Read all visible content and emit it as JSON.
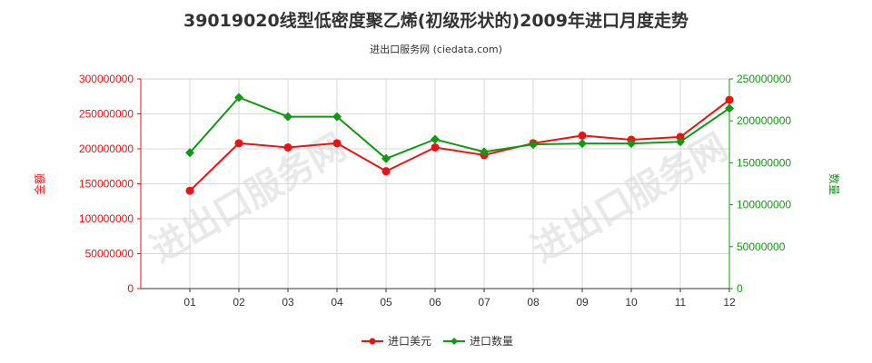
{
  "chart_data": {
    "type": "line",
    "title": "39019020线型低密度聚乙烯(初级形状的)2009年进口月度走势",
    "subtitle": "进出口服务网 (ciedata.com)",
    "watermark": "进出口服务网",
    "categories": [
      "01",
      "02",
      "03",
      "04",
      "05",
      "06",
      "07",
      "08",
      "09",
      "10",
      "11",
      "12"
    ],
    "y_left": {
      "label": "金额",
      "ylim": [
        0,
        300000000
      ],
      "ticks": [
        "0",
        "50000000",
        "100000000",
        "150000000",
        "200000000",
        "250000000",
        "300000000"
      ],
      "tick_values": [
        0,
        50000000,
        100000000,
        150000000,
        200000000,
        250000000,
        300000000
      ],
      "color": "#ee1111"
    },
    "y_right": {
      "label": "数量",
      "ylim": [
        0,
        250000000
      ],
      "ticks": [
        "0",
        "50000000",
        "100000000",
        "150000000",
        "200000000",
        "250000000"
      ],
      "tick_values": [
        0,
        50000000,
        100000000,
        150000000,
        200000000,
        250000000
      ],
      "color": "#119911"
    },
    "series": [
      {
        "name": "进口美元",
        "axis": "left",
        "color": "#ee1111",
        "marker": "circle",
        "values": [
          140000000,
          208000000,
          202000000,
          208000000,
          168000000,
          202000000,
          191000000,
          208000000,
          219000000,
          213000000,
          217000000,
          270000000
        ]
      },
      {
        "name": "进口数量",
        "axis": "right",
        "color": "#119911",
        "marker": "diamond",
        "values": [
          162000000,
          228000000,
          205000000,
          205000000,
          155000000,
          178000000,
          163000000,
          172000000,
          173000000,
          173000000,
          175000000,
          215000000
        ]
      }
    ],
    "grid": true,
    "legend": "bottom-center"
  }
}
